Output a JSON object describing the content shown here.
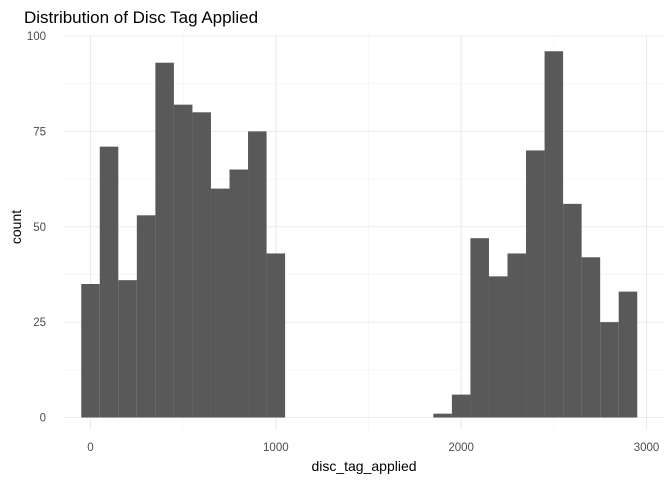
{
  "chart_data": {
    "type": "bar",
    "title": "Distribution of Disc Tag Applied",
    "xlabel": "disc_tag_applied",
    "ylabel": "count",
    "xlim": [
      -100,
      3050
    ],
    "ylim": [
      0,
      100
    ],
    "x_ticks": [
      0,
      1000,
      2000,
      3000
    ],
    "x_tick_labels": [
      "0",
      "1000",
      "2000",
      "3000"
    ],
    "y_ticks": [
      0,
      25,
      50,
      75,
      100
    ],
    "y_tick_labels": [
      "0",
      "25",
      "50",
      "75",
      "100"
    ],
    "grid": true,
    "bin_width": 100,
    "bar_color": "#595959",
    "bins": [
      {
        "x0": -50,
        "x1": 50,
        "count": 35
      },
      {
        "x0": 50,
        "x1": 150,
        "count": 71
      },
      {
        "x0": 150,
        "x1": 250,
        "count": 36
      },
      {
        "x0": 250,
        "x1": 350,
        "count": 53
      },
      {
        "x0": 350,
        "x1": 450,
        "count": 93
      },
      {
        "x0": 450,
        "x1": 550,
        "count": 82
      },
      {
        "x0": 550,
        "x1": 650,
        "count": 80
      },
      {
        "x0": 650,
        "x1": 750,
        "count": 60
      },
      {
        "x0": 750,
        "x1": 850,
        "count": 65
      },
      {
        "x0": 850,
        "x1": 950,
        "count": 75
      },
      {
        "x0": 950,
        "x1": 1050,
        "count": 43
      },
      {
        "x0": 1850,
        "x1": 1950,
        "count": 1
      },
      {
        "x0": 1950,
        "x1": 2050,
        "count": 6
      },
      {
        "x0": 2050,
        "x1": 2150,
        "count": 47
      },
      {
        "x0": 2150,
        "x1": 2250,
        "count": 37
      },
      {
        "x0": 2250,
        "x1": 2350,
        "count": 43
      },
      {
        "x0": 2350,
        "x1": 2450,
        "count": 70
      },
      {
        "x0": 2450,
        "x1": 2550,
        "count": 96
      },
      {
        "x0": 2550,
        "x1": 2650,
        "count": 56
      },
      {
        "x0": 2650,
        "x1": 2750,
        "count": 42
      },
      {
        "x0": 2750,
        "x1": 2850,
        "count": 25
      },
      {
        "x0": 2850,
        "x1": 2950,
        "count": 33
      }
    ]
  }
}
